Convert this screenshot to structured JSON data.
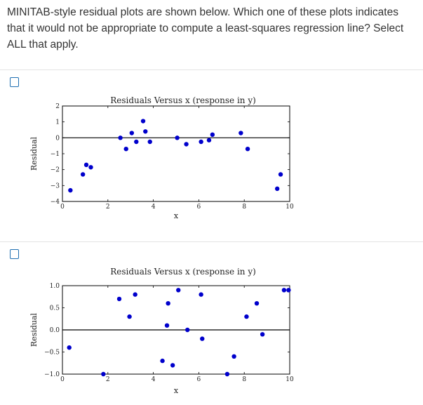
{
  "question": {
    "text": "MINITAB-style residual plots are shown below. Which one of these plots indicates that it would not be appropriate to compute a least-squares regression line? Select ALL that apply."
  },
  "options": [
    {
      "selected": false
    },
    {
      "selected": false
    }
  ],
  "chart_data": [
    {
      "type": "scatter",
      "title": "Residuals Versus x (response in y)",
      "xlabel": "x",
      "ylabel": "Residual",
      "xlim": [
        0,
        10
      ],
      "ylim": [
        -4,
        2
      ],
      "xticks": [
        "0",
        "2",
        "4",
        "6",
        "8",
        "10"
      ],
      "yticks": [
        "2",
        "1",
        "0",
        "−1",
        "−2",
        "−3",
        "−4"
      ],
      "point_color": "#0000cc",
      "zero_line": true,
      "x": [
        0.35,
        0.9,
        1.05,
        1.25,
        2.55,
        2.8,
        3.05,
        3.25,
        3.55,
        3.65,
        3.85,
        5.05,
        5.45,
        6.1,
        6.45,
        6.6,
        7.85,
        8.15,
        9.45,
        9.6
      ],
      "y": [
        -3.3,
        -2.3,
        -1.7,
        -1.85,
        0,
        -0.7,
        0.3,
        -0.25,
        1.05,
        0.4,
        -0.25,
        0,
        -0.4,
        -0.25,
        -0.15,
        0.2,
        0.3,
        -0.7,
        -3.2,
        -2.3
      ]
    },
    {
      "type": "scatter",
      "title": "Residuals Versus x (response in y)",
      "xlabel": "x",
      "ylabel": "Residual",
      "xlim": [
        0,
        10
      ],
      "ylim": [
        -1,
        1
      ],
      "xticks": [
        "0",
        "2",
        "4",
        "6",
        "8",
        "10"
      ],
      "yticks": [
        "1.0",
        "0.5",
        "0.0",
        "−0.5",
        "−1.0"
      ],
      "point_color": "#0000cc",
      "zero_line": true,
      "x": [
        0.3,
        1.8,
        2.5,
        2.95,
        3.2,
        4.4,
        4.6,
        4.65,
        4.85,
        5.1,
        5.5,
        6.1,
        6.15,
        7.25,
        7.55,
        8.1,
        8.55,
        8.8,
        9.75,
        9.95
      ],
      "y": [
        -0.4,
        -1.0,
        0.7,
        0.3,
        0.8,
        -0.7,
        0.1,
        0.6,
        -0.8,
        0.9,
        0.0,
        0.8,
        -0.2,
        -1.0,
        -0.6,
        0.3,
        0.6,
        -0.1,
        0.9,
        0.9
      ]
    }
  ]
}
